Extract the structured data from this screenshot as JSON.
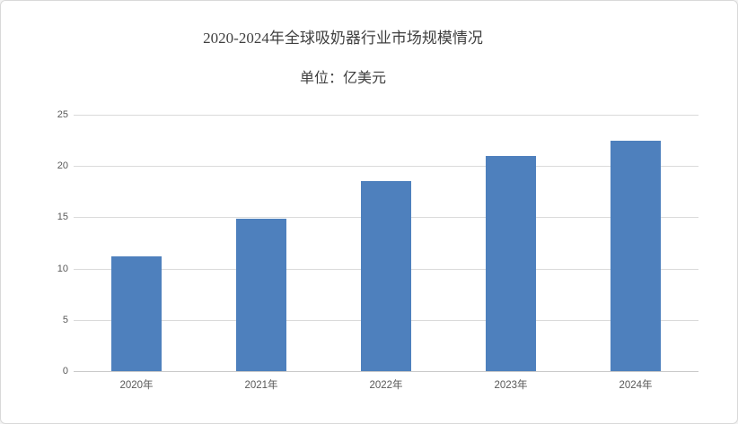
{
  "window": {
    "background": "#ffffff",
    "border_color": "#d9d9d9"
  },
  "chart_data": {
    "type": "bar",
    "title": "2020-2024年全球吸奶器行业市场规模情况",
    "unit_label": "单位：亿美元",
    "categories": [
      "2020年",
      "2021年",
      "2022年",
      "2023年",
      "2024年"
    ],
    "values": [
      11.2,
      14.9,
      18.5,
      21.0,
      22.5
    ],
    "ylim": [
      0,
      25
    ],
    "yticks": [
      0,
      5,
      10,
      15,
      20,
      25
    ],
    "grid": true,
    "legend_position": "none",
    "bar_color": "#4e80bd",
    "gridline_color": "#dadada",
    "axis_line_color": "#c9c9c9",
    "tick_label_color": "#595959",
    "title_color": "#3f3f3f"
  }
}
